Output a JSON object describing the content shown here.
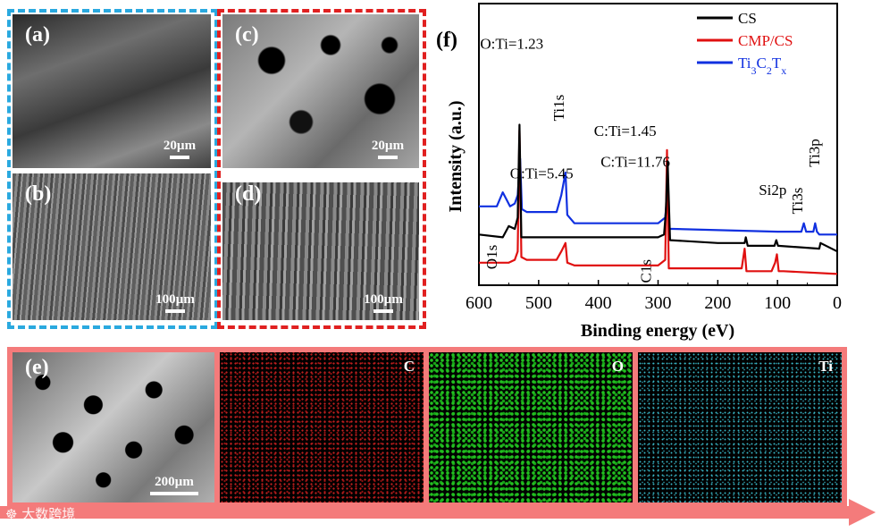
{
  "panels": {
    "a": {
      "label": "(a)",
      "scale": "20µm"
    },
    "b": {
      "label": "(b)",
      "scale": "100µm"
    },
    "c": {
      "label": "(c)",
      "scale": "20µm"
    },
    "d": {
      "label": "(d)",
      "scale": "100µm"
    },
    "e": {
      "label": "(e)",
      "scale": "200µm"
    },
    "f": {
      "label": "(f)"
    }
  },
  "eds_maps": [
    {
      "element": "C",
      "color": "#d42020"
    },
    {
      "element": "O",
      "color": "#22c020"
    },
    {
      "element": "Ti",
      "color": "#39b8c8"
    }
  ],
  "colors": {
    "blue_frame": "#2aa9df",
    "red_frame": "#e02020",
    "arrow": "#f47b7b"
  },
  "watermark": "大数跨境",
  "chart_data": {
    "type": "line",
    "xlabel": "Binding energy (eV)",
    "ylabel": "Intensity (a.u.)",
    "xlim": [
      600,
      0
    ],
    "x_ticks": [
      "600",
      "500",
      "400",
      "300",
      "200",
      "100",
      "0"
    ],
    "legend": [
      {
        "name": "CS",
        "color": "#000000"
      },
      {
        "name": "CMP/CS",
        "color": "#e01010"
      },
      {
        "name": "Ti3C2Tx",
        "color": "#1030e0"
      }
    ],
    "series": [
      {
        "name": "Ti3C2Tx",
        "color": "#1030e0",
        "x": [
          600,
          570,
          560,
          548,
          540,
          535,
          531,
          528,
          520,
          470,
          462,
          455,
          452,
          440,
          300,
          288,
          284,
          281,
          275,
          100,
          60,
          56,
          52,
          40,
          37,
          34,
          30,
          0
        ],
        "y": [
          0.28,
          0.28,
          0.33,
          0.28,
          0.29,
          0.32,
          0.45,
          0.27,
          0.26,
          0.26,
          0.32,
          0.4,
          0.25,
          0.22,
          0.22,
          0.24,
          0.34,
          0.2,
          0.2,
          0.19,
          0.19,
          0.22,
          0.19,
          0.19,
          0.22,
          0.19,
          0.18,
          0.18
        ]
      },
      {
        "name": "CMP/CS",
        "color": "#e01010",
        "x": [
          600,
          550,
          540,
          535,
          532,
          529,
          520,
          470,
          462,
          455,
          452,
          440,
          300,
          288,
          285,
          282,
          275,
          160,
          155,
          152,
          110,
          104,
          101,
          98,
          90,
          0
        ],
        "y": [
          0.08,
          0.08,
          0.09,
          0.12,
          0.55,
          0.1,
          0.09,
          0.09,
          0.12,
          0.15,
          0.08,
          0.07,
          0.07,
          0.09,
          0.48,
          0.06,
          0.06,
          0.06,
          0.13,
          0.05,
          0.05,
          0.08,
          0.11,
          0.05,
          0.05,
          0.04
        ]
      },
      {
        "name": "CS",
        "color": "#000000",
        "x": [
          600,
          560,
          550,
          540,
          535,
          532,
          529,
          520,
          300,
          290,
          287,
          284,
          280,
          200,
          155,
          153,
          150,
          105,
          102,
          99,
          30,
          28,
          0
        ],
        "y": [
          0.18,
          0.17,
          0.21,
          0.2,
          0.24,
          0.57,
          0.17,
          0.17,
          0.17,
          0.18,
          0.26,
          0.44,
          0.16,
          0.15,
          0.15,
          0.17,
          0.14,
          0.14,
          0.16,
          0.14,
          0.13,
          0.15,
          0.12
        ]
      }
    ],
    "annotations": [
      {
        "text": "O:Ti=1.23",
        "x": 545,
        "y": 0.84
      },
      {
        "text": "Ti1s",
        "x": 458,
        "y": 0.63
      },
      {
        "text": "C:Ti=1.45",
        "x": 355,
        "y": 0.53
      },
      {
        "text": "Ti3s",
        "x": 58,
        "y": 0.3
      },
      {
        "text": "Ti3p",
        "x": 30,
        "y": 0.47
      },
      {
        "text": "O:Ti=5.45",
        "x": 495,
        "y": 0.38
      },
      {
        "text": "C:Ti=11.76",
        "x": 338,
        "y": 0.42
      },
      {
        "text": "Si2p",
        "x": 108,
        "y": 0.32
      },
      {
        "text": "O1s",
        "x": 570,
        "y": 0.1
      },
      {
        "text": "C1s",
        "x": 312,
        "y": 0.05
      }
    ],
    "ylim": [
      0,
      1
    ],
    "grid": false,
    "legend_position": "top-right"
  }
}
